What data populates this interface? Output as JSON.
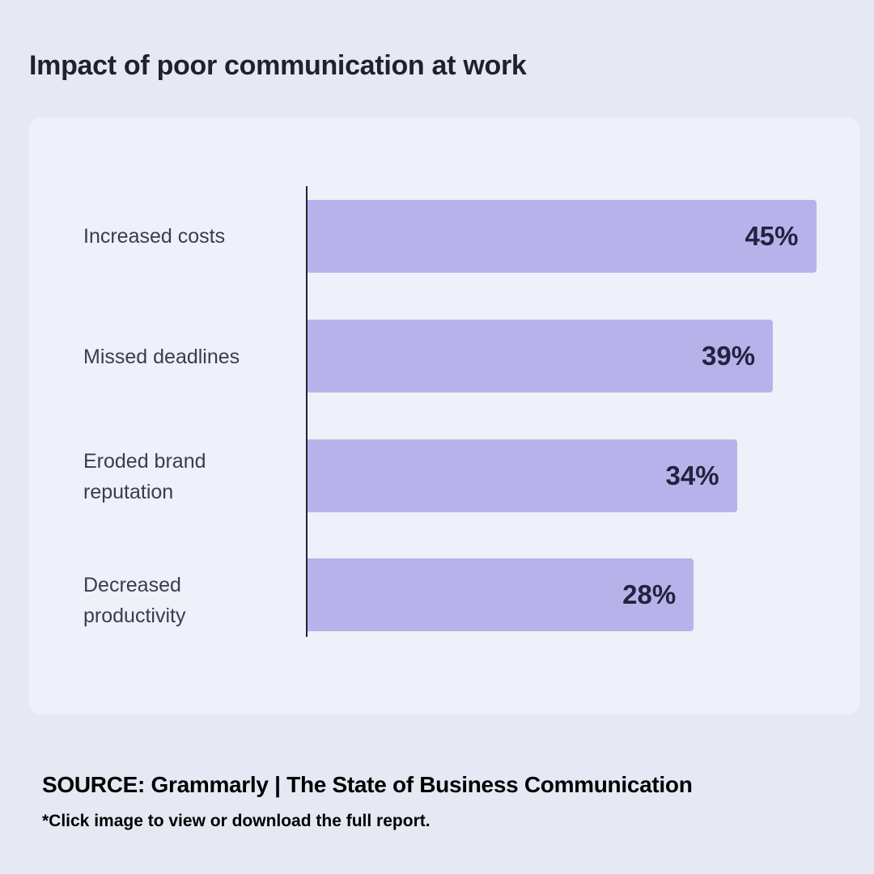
{
  "chart_data": {
    "type": "bar",
    "orientation": "horizontal",
    "title": "Impact of poor communication at work",
    "categories": [
      "Increased costs",
      "Missed deadlines",
      "Eroded brand reputation",
      "Decreased productivity"
    ],
    "values": [
      45,
      39,
      34,
      28
    ],
    "value_labels": [
      "45%",
      "39%",
      "34%",
      "28%"
    ],
    "xlabel": "",
    "ylabel": "",
    "colors": {
      "bar": "#b7b3ea",
      "label": "#24223f"
    }
  },
  "footer": {
    "source": "SOURCE: Grammarly  | The State of Business Communication",
    "note": "*Click image to view or download the full report."
  }
}
